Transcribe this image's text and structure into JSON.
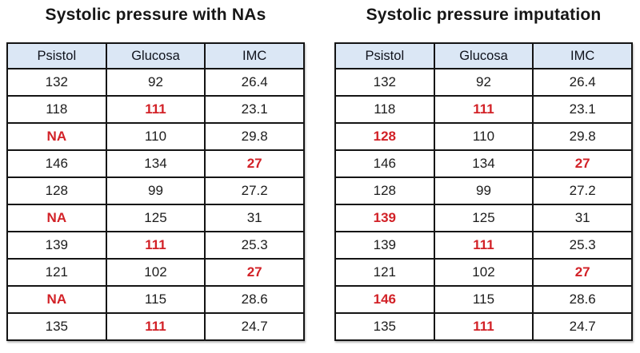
{
  "colors": {
    "header_bg": "#dbe7f5",
    "border": "#141414",
    "highlight": "#d22127",
    "text": "#1c1c1c",
    "background": "#ffffff"
  },
  "chart_data": [
    {
      "type": "table",
      "title": "Systolic pressure with NAs",
      "columns": [
        "Psistol",
        "Glucosa",
        "IMC"
      ],
      "rows": [
        [
          {
            "v": "132",
            "red": false
          },
          {
            "v": "92",
            "red": false
          },
          {
            "v": "26.4",
            "red": false
          }
        ],
        [
          {
            "v": "118",
            "red": false
          },
          {
            "v": "111",
            "red": true
          },
          {
            "v": "23.1",
            "red": false
          }
        ],
        [
          {
            "v": "NA",
            "red": true
          },
          {
            "v": "110",
            "red": false
          },
          {
            "v": "29.8",
            "red": false
          }
        ],
        [
          {
            "v": "146",
            "red": false
          },
          {
            "v": "134",
            "red": false
          },
          {
            "v": "27",
            "red": true
          }
        ],
        [
          {
            "v": "128",
            "red": false
          },
          {
            "v": "99",
            "red": false
          },
          {
            "v": "27.2",
            "red": false
          }
        ],
        [
          {
            "v": "NA",
            "red": true
          },
          {
            "v": "125",
            "red": false
          },
          {
            "v": "31",
            "red": false
          }
        ],
        [
          {
            "v": "139",
            "red": false
          },
          {
            "v": "111",
            "red": true
          },
          {
            "v": "25.3",
            "red": false
          }
        ],
        [
          {
            "v": "121",
            "red": false
          },
          {
            "v": "102",
            "red": false
          },
          {
            "v": "27",
            "red": true
          }
        ],
        [
          {
            "v": "NA",
            "red": true
          },
          {
            "v": "115",
            "red": false
          },
          {
            "v": "28.6",
            "red": false
          }
        ],
        [
          {
            "v": "135",
            "red": false
          },
          {
            "v": "111",
            "red": true
          },
          {
            "v": "24.7",
            "red": false
          }
        ]
      ]
    },
    {
      "type": "table",
      "title": "Systolic pressure imputation",
      "columns": [
        "Psistol",
        "Glucosa",
        "IMC"
      ],
      "rows": [
        [
          {
            "v": "132",
            "red": false
          },
          {
            "v": "92",
            "red": false
          },
          {
            "v": "26.4",
            "red": false
          }
        ],
        [
          {
            "v": "118",
            "red": false
          },
          {
            "v": "111",
            "red": true
          },
          {
            "v": "23.1",
            "red": false
          }
        ],
        [
          {
            "v": "128",
            "red": true
          },
          {
            "v": "110",
            "red": false
          },
          {
            "v": "29.8",
            "red": false
          }
        ],
        [
          {
            "v": "146",
            "red": false
          },
          {
            "v": "134",
            "red": false
          },
          {
            "v": "27",
            "red": true
          }
        ],
        [
          {
            "v": "128",
            "red": false
          },
          {
            "v": "99",
            "red": false
          },
          {
            "v": "27.2",
            "red": false
          }
        ],
        [
          {
            "v": "139",
            "red": true
          },
          {
            "v": "125",
            "red": false
          },
          {
            "v": "31",
            "red": false
          }
        ],
        [
          {
            "v": "139",
            "red": false
          },
          {
            "v": "111",
            "red": true
          },
          {
            "v": "25.3",
            "red": false
          }
        ],
        [
          {
            "v": "121",
            "red": false
          },
          {
            "v": "102",
            "red": false
          },
          {
            "v": "27",
            "red": true
          }
        ],
        [
          {
            "v": "146",
            "red": true
          },
          {
            "v": "115",
            "red": false
          },
          {
            "v": "28.6",
            "red": false
          }
        ],
        [
          {
            "v": "135",
            "red": false
          },
          {
            "v": "111",
            "red": true
          },
          {
            "v": "24.7",
            "red": false
          }
        ]
      ]
    }
  ]
}
